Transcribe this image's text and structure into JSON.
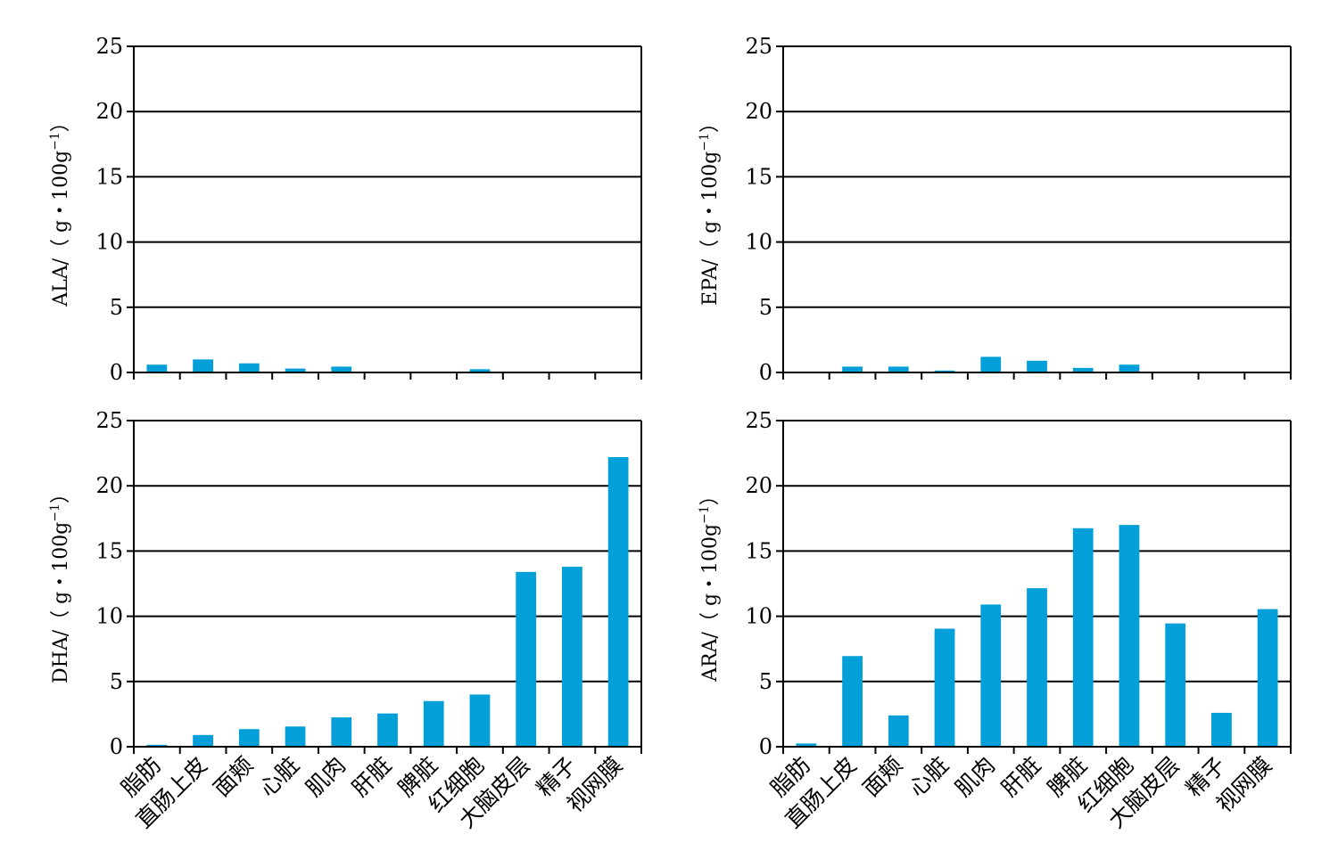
{
  "categories": [
    "脂肪",
    "直肠上皮",
    "面颊",
    "心脏",
    "肌肉",
    "肝脏",
    "脾脏",
    "红细胞",
    "大脑皮层",
    "精子",
    "视网膜"
  ],
  "colors": {
    "bar": "#039fd8",
    "axis": "#000000",
    "grid": "#000000"
  },
  "chart_data": [
    {
      "type": "bar",
      "title": "",
      "xlabel": "",
      "ylabel": "ALA/（g・100g⁻¹）",
      "ylabel_parts": {
        "main": "ALA/（ g・100g",
        "sup": "−1",
        "close": "）"
      },
      "ylim": [
        0,
        25
      ],
      "yticks": [
        "0",
        "5",
        "10",
        "15",
        "20",
        "25"
      ],
      "grid": true,
      "categories": [
        "脂肪",
        "直肠上皮",
        "面颊",
        "心脏",
        "肌肉",
        "肝脏",
        "脾脏",
        "红细胞",
        "大脑皮层",
        "精子",
        "视网膜"
      ],
      "values": [
        0.6,
        1.0,
        0.7,
        0.3,
        0.45,
        0,
        0,
        0.25,
        0,
        0,
        0
      ],
      "show_category_labels": false
    },
    {
      "type": "bar",
      "title": "",
      "xlabel": "",
      "ylabel": "EPA/（g・100g⁻¹）",
      "ylabel_parts": {
        "main": "EPA/（ g・100g",
        "sup": "−1",
        "close": "）"
      },
      "ylim": [
        0,
        25
      ],
      "yticks": [
        "0",
        "5",
        "10",
        "15",
        "20",
        "25"
      ],
      "grid": true,
      "categories": [
        "脂肪",
        "直肠上皮",
        "面颊",
        "心脏",
        "肌肉",
        "肝脏",
        "脾脏",
        "红细胞",
        "大脑皮层",
        "精子",
        "视网膜"
      ],
      "values": [
        0,
        0.45,
        0.45,
        0.15,
        1.2,
        0.9,
        0.35,
        0.6,
        0,
        0,
        0
      ],
      "show_category_labels": false
    },
    {
      "type": "bar",
      "title": "",
      "xlabel": "",
      "ylabel": "DHA/（g・100g⁻¹）",
      "ylabel_parts": {
        "main": "DHA/（ g・100g",
        "sup": "−1",
        "close": "）"
      },
      "ylim": [
        0,
        25
      ],
      "yticks": [
        "0",
        "5",
        "10",
        "15",
        "20",
        "25"
      ],
      "grid": true,
      "categories": [
        "脂肪",
        "直肠上皮",
        "面颊",
        "心脏",
        "肌肉",
        "肝脏",
        "脾脏",
        "红细胞",
        "大脑皮层",
        "精子",
        "视网膜"
      ],
      "values": [
        0.15,
        0.9,
        1.35,
        1.55,
        2.25,
        2.55,
        3.5,
        4.0,
        13.4,
        13.8,
        22.2
      ],
      "show_category_labels": true
    },
    {
      "type": "bar",
      "title": "",
      "xlabel": "",
      "ylabel": "ARA/（g・100g⁻¹）",
      "ylabel_parts": {
        "main": "ARA/（ g・100g",
        "sup": "−1",
        "close": "）"
      },
      "ylim": [
        0,
        25
      ],
      "yticks": [
        "0",
        "5",
        "10",
        "15",
        "20",
        "25"
      ],
      "grid": true,
      "categories": [
        "脂肪",
        "直肠上皮",
        "面颊",
        "心脏",
        "肌肉",
        "肝脏",
        "脾脏",
        "红细胞",
        "大脑皮层",
        "精子",
        "视网膜"
      ],
      "values": [
        0.25,
        6.95,
        2.4,
        9.05,
        10.9,
        12.15,
        16.75,
        17.0,
        9.45,
        2.6,
        10.55
      ],
      "show_category_labels": true
    }
  ]
}
